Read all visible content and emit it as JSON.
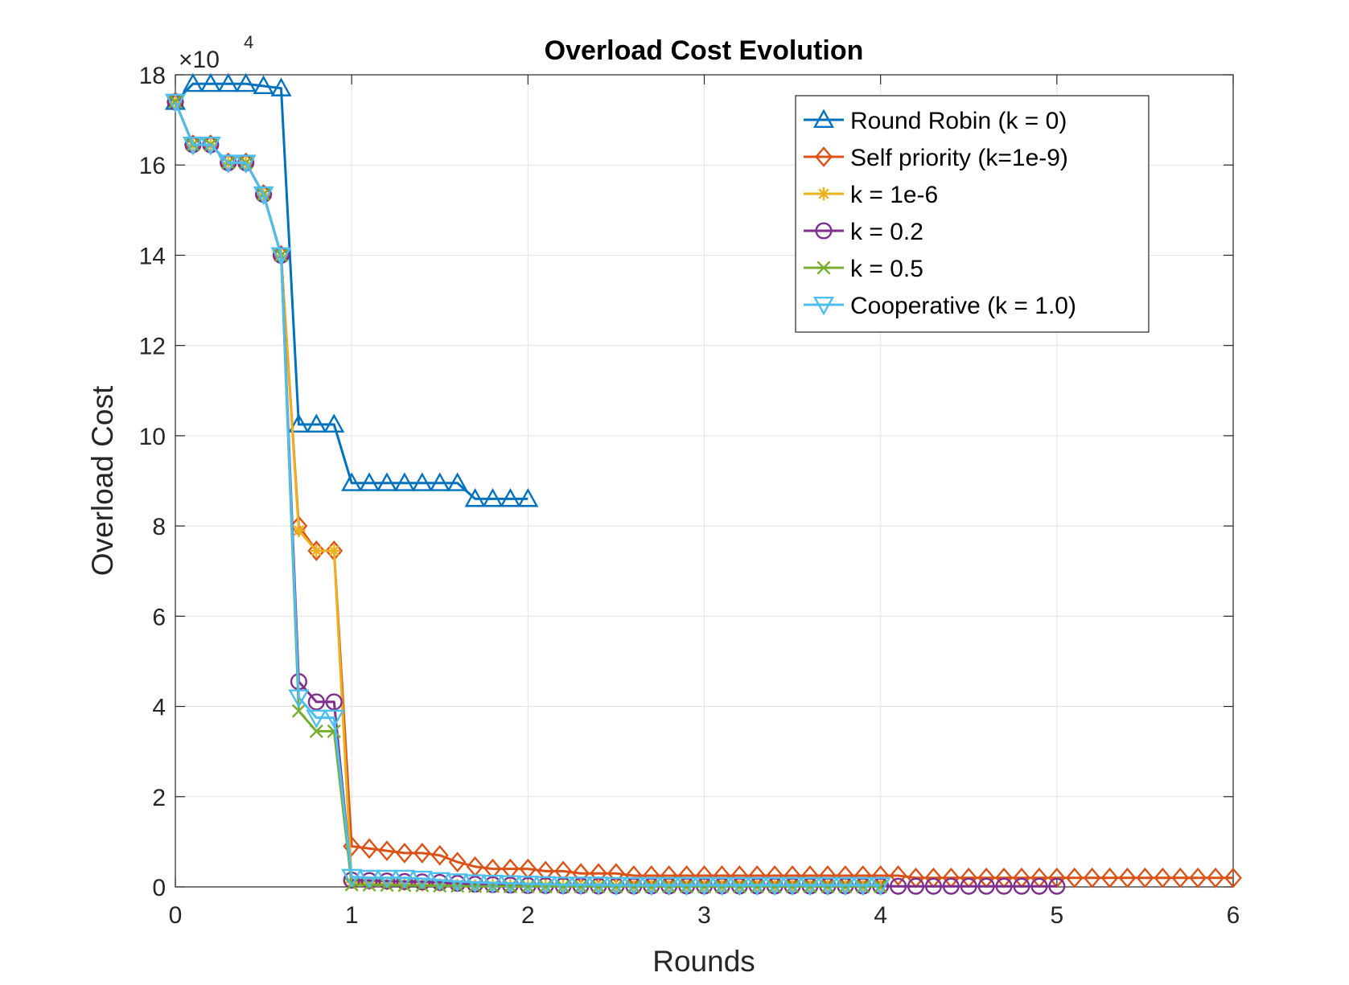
{
  "chart_data": {
    "type": "line",
    "title": "Overload Cost Evolution",
    "xlabel": "Rounds",
    "ylabel": "Overload Cost",
    "y_exponent_label": "×10",
    "y_exponent": "4",
    "y_multiplier": 10000,
    "xlim": [
      0,
      6
    ],
    "ylim": [
      0,
      180000
    ],
    "xticks": [
      0,
      1,
      2,
      3,
      4,
      5,
      6
    ],
    "yticks": [
      0,
      20000,
      40000,
      60000,
      80000,
      100000,
      120000,
      140000,
      160000,
      180000
    ],
    "ytick_labels": [
      "0",
      "2",
      "4",
      "6",
      "8",
      "10",
      "12",
      "14",
      "16",
      "18"
    ],
    "grid": true,
    "legend_position": "top-right",
    "series": [
      {
        "name": "Round Robin (k = 0)",
        "color": "#0072BD",
        "marker": "triangle-up",
        "x": [
          0,
          0.1,
          0.2,
          0.3,
          0.4,
          0.5,
          0.6,
          0.7,
          0.8,
          0.9,
          1.0,
          1.1,
          1.2,
          1.3,
          1.4,
          1.5,
          1.6,
          1.7,
          1.8,
          1.9,
          2.0
        ],
        "y": [
          174000,
          178000,
          178000,
          178000,
          178000,
          177500,
          177000,
          102500,
          102500,
          102500,
          89500,
          89500,
          89500,
          89500,
          89500,
          89500,
          89500,
          86000,
          86000,
          86000,
          86000
        ]
      },
      {
        "name": "Self priority (k=1e-9)",
        "color": "#D95319",
        "marker": "diamond",
        "x": [
          0,
          0.1,
          0.2,
          0.3,
          0.4,
          0.5,
          0.6,
          0.7,
          0.8,
          0.9,
          1.0,
          1.1,
          1.2,
          1.3,
          1.4,
          1.5,
          1.6,
          1.7,
          1.8,
          1.9,
          2.0,
          2.1,
          2.2,
          2.3,
          2.4,
          2.5,
          2.6,
          2.7,
          2.8,
          2.9,
          3.0,
          3.1,
          3.2,
          3.3,
          3.4,
          3.5,
          3.6,
          3.7,
          3.8,
          3.9,
          4.0,
          4.1,
          4.2,
          4.3,
          4.4,
          4.5,
          4.6,
          4.7,
          4.8,
          4.9,
          5.0,
          5.1,
          5.2,
          5.3,
          5.4,
          5.5,
          5.6,
          5.7,
          5.8,
          5.9,
          6.0
        ],
        "y": [
          174000,
          164500,
          164500,
          160500,
          160500,
          153500,
          140000,
          80000,
          74500,
          74500,
          9000,
          8500,
          8000,
          7500,
          7500,
          7000,
          5500,
          4500,
          4000,
          4000,
          4000,
          3500,
          3500,
          3000,
          3000,
          3000,
          2500,
          2500,
          2500,
          2500,
          2500,
          2500,
          2500,
          2500,
          2500,
          2500,
          2500,
          2500,
          2500,
          2500,
          2500,
          2500,
          2000,
          2000,
          2000,
          2000,
          2000,
          2000,
          2000,
          2000,
          2000,
          2000,
          2000,
          2000,
          2000,
          2000,
          2000,
          2000,
          2000,
          2000,
          2000
        ]
      },
      {
        "name": "k = 1e-6",
        "color": "#EDB120",
        "marker": "asterisk",
        "x": [
          0,
          0.1,
          0.2,
          0.3,
          0.4,
          0.5,
          0.6,
          0.7,
          0.8,
          0.9,
          1.0,
          1.1,
          1.2,
          1.3,
          1.4,
          1.5,
          1.6,
          1.7,
          1.8,
          1.9,
          2.0,
          2.1,
          2.2,
          2.3,
          2.4,
          2.5,
          2.6,
          2.7,
          2.8,
          2.9,
          3.0,
          3.1,
          3.2,
          3.3,
          3.4,
          3.5,
          3.6,
          3.7,
          3.8,
          3.9,
          4.0
        ],
        "y": [
          174000,
          164500,
          164500,
          160500,
          160500,
          153500,
          140000,
          79000,
          74500,
          74500,
          1000,
          800,
          700,
          600,
          500,
          400,
          300,
          200,
          200,
          200,
          150,
          150,
          100,
          100,
          100,
          100,
          100,
          100,
          100,
          100,
          100,
          100,
          100,
          100,
          100,
          100,
          100,
          100,
          100,
          100,
          100
        ]
      },
      {
        "name": "k = 0.2",
        "color": "#7E2F8E",
        "marker": "circle",
        "x": [
          0,
          0.1,
          0.2,
          0.3,
          0.4,
          0.5,
          0.6,
          0.7,
          0.8,
          0.9,
          1.0,
          1.1,
          1.2,
          1.3,
          1.4,
          1.5,
          1.6,
          1.7,
          1.8,
          1.9,
          2.0,
          2.1,
          2.2,
          2.3,
          2.4,
          2.5,
          2.6,
          2.7,
          2.8,
          2.9,
          3.0,
          3.1,
          3.2,
          3.3,
          3.4,
          3.5,
          3.6,
          3.7,
          3.8,
          3.9,
          4.0,
          4.1,
          4.2,
          4.3,
          4.4,
          4.5,
          4.6,
          4.7,
          4.8,
          4.9,
          5.0
        ],
        "y": [
          174000,
          164500,
          164500,
          160500,
          160500,
          153500,
          140000,
          45500,
          41000,
          41000,
          1500,
          1400,
          1300,
          1200,
          1100,
          1000,
          800,
          600,
          500,
          400,
          300,
          300,
          250,
          250,
          200,
          200,
          200,
          200,
          200,
          200,
          200,
          200,
          200,
          200,
          200,
          200,
          200,
          200,
          200,
          200,
          200,
          150,
          150,
          150,
          150,
          150,
          150,
          150,
          150,
          150,
          150
        ]
      },
      {
        "name": "k = 0.5",
        "color": "#77AC30",
        "marker": "cross",
        "x": [
          0,
          0.1,
          0.2,
          0.3,
          0.4,
          0.5,
          0.6,
          0.7,
          0.8,
          0.9,
          1.0,
          1.1,
          1.2,
          1.3,
          1.4,
          1.5,
          1.6,
          1.7,
          1.8,
          1.9,
          2.0,
          2.1,
          2.2,
          2.3,
          2.4,
          2.5,
          2.6,
          2.7,
          2.8,
          2.9,
          3.0,
          3.1,
          3.2,
          3.3,
          3.4,
          3.5,
          3.6,
          3.7,
          3.8,
          3.9,
          4.0
        ],
        "y": [
          174000,
          164500,
          164500,
          160500,
          160500,
          153500,
          140000,
          39000,
          34500,
          34500,
          500,
          450,
          400,
          350,
          300,
          250,
          200,
          150,
          150,
          100,
          100,
          100,
          100,
          100,
          100,
          100,
          100,
          100,
          100,
          100,
          100,
          100,
          100,
          100,
          100,
          100,
          100,
          100,
          100,
          100,
          100
        ]
      },
      {
        "name": "Cooperative (k = 1.0)",
        "color": "#4DBEEE",
        "marker": "triangle-down",
        "x": [
          0,
          0.1,
          0.2,
          0.3,
          0.4,
          0.5,
          0.6,
          0.7,
          0.8,
          0.9,
          1.0,
          1.1,
          1.2,
          1.3,
          1.4,
          1.5,
          1.6,
          1.7,
          1.8,
          1.9,
          2.0,
          2.1,
          2.2,
          2.3,
          2.4,
          2.5,
          2.6,
          2.7,
          2.8,
          2.9,
          3.0,
          3.1,
          3.2,
          3.3,
          3.4,
          3.5,
          3.6,
          3.7,
          3.8,
          3.9,
          4.0
        ],
        "y": [
          174000,
          164500,
          164500,
          160500,
          160500,
          153500,
          140000,
          42000,
          37500,
          37500,
          2200,
          2000,
          2000,
          2000,
          1800,
          1500,
          1200,
          1000,
          900,
          800,
          700,
          600,
          500,
          500,
          500,
          400,
          400,
          400,
          400,
          400,
          400,
          400,
          400,
          400,
          400,
          400,
          400,
          400,
          400,
          400,
          400
        ]
      }
    ]
  }
}
